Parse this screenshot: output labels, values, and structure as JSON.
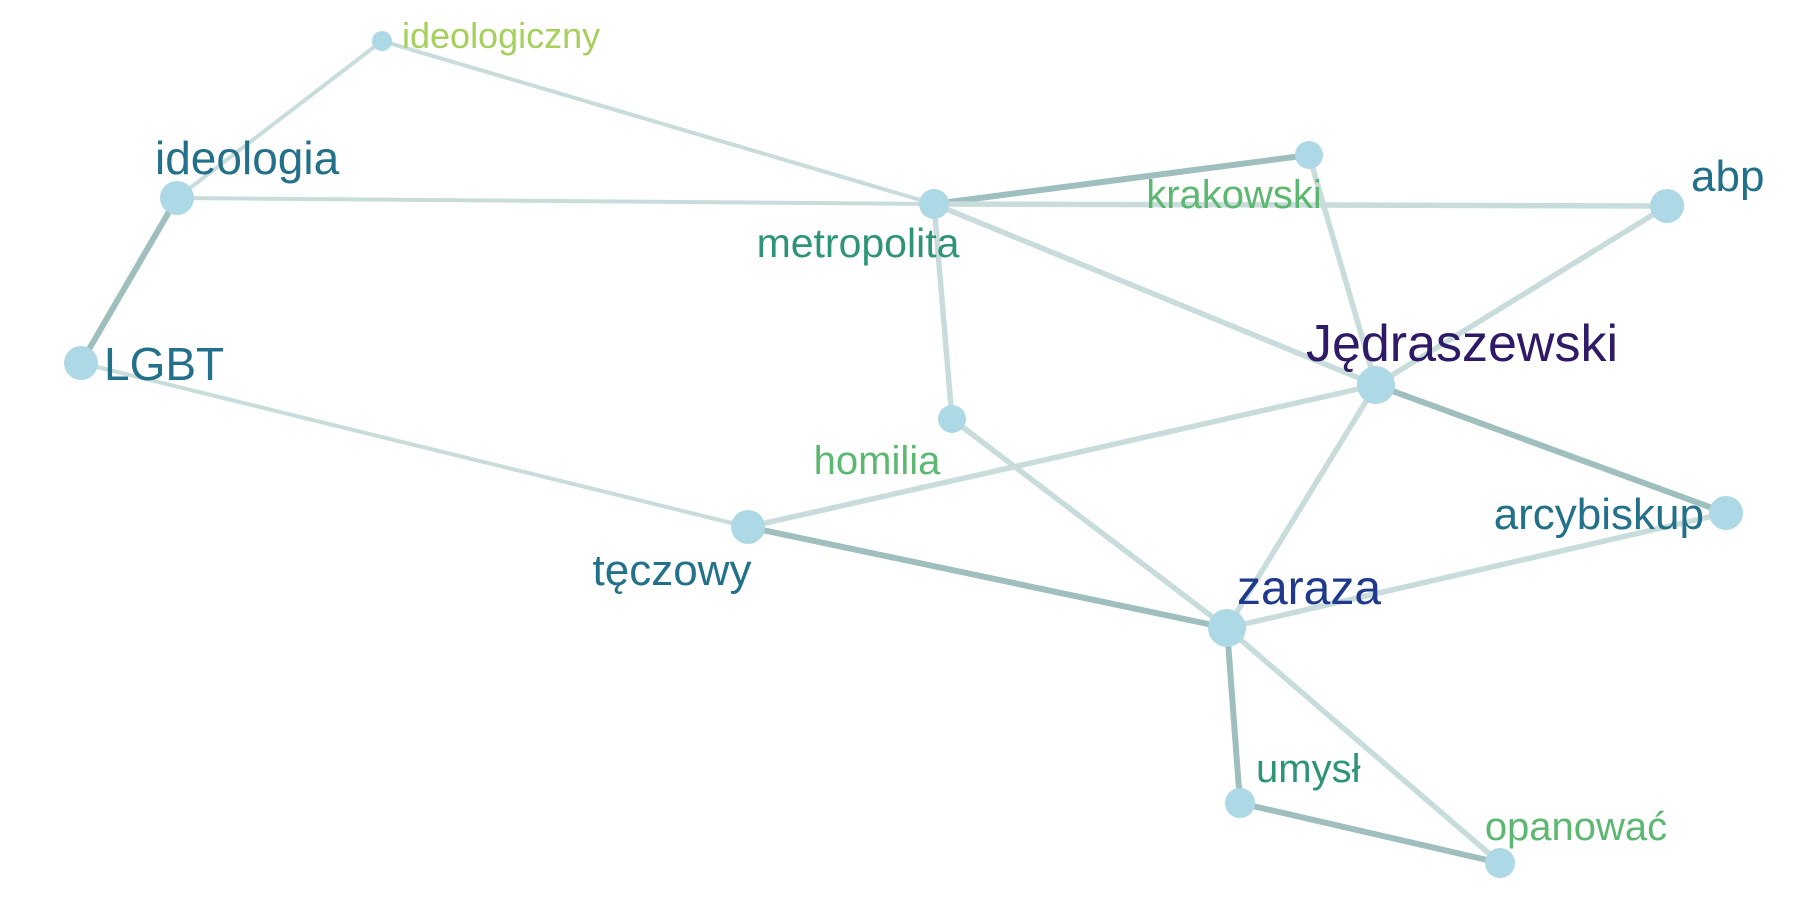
{
  "colors": {
    "node": "#add8e6",
    "edge": "#c9dcdc",
    "edge_strong": "#9fbebe",
    "background": "#ffffff"
  },
  "nodes": [
    {
      "id": "ideologiczny",
      "label": "ideologiczny",
      "color": "#a6d05c"
    },
    {
      "id": "ideologia",
      "label": "ideologia",
      "color": "#22708a"
    },
    {
      "id": "metropolita",
      "label": "metropolita",
      "color": "#2e9478"
    },
    {
      "id": "krakowski",
      "label": "krakowski",
      "color": "#5cb870"
    },
    {
      "id": "abp",
      "label": "abp",
      "color": "#22708a"
    },
    {
      "id": "LGBT",
      "label": "LGBT",
      "color": "#22708a"
    },
    {
      "id": "Jedraszewski",
      "label": "Jędraszewski",
      "color": "#2e1a66"
    },
    {
      "id": "homilia",
      "label": "homilia",
      "color": "#5cb870"
    },
    {
      "id": "arcybiskup",
      "label": "arcybiskup",
      "color": "#22708a"
    },
    {
      "id": "teczowy",
      "label": "tęczowy",
      "color": "#22708a"
    },
    {
      "id": "zaraza",
      "label": "zaraza",
      "color": "#1f3a8c"
    },
    {
      "id": "umysl",
      "label": "umysł",
      "color": "#2e9478"
    },
    {
      "id": "opanowac",
      "label": "opanować",
      "color": "#5cb870"
    }
  ],
  "edges": [
    {
      "source": "ideologiczny",
      "target": "ideologia",
      "weight": 1
    },
    {
      "source": "ideologiczny",
      "target": "metropolita",
      "weight": 1
    },
    {
      "source": "ideologia",
      "target": "metropolita",
      "weight": 1
    },
    {
      "source": "ideologia",
      "target": "LGBT",
      "weight": 3
    },
    {
      "source": "metropolita",
      "target": "krakowski",
      "weight": 3
    },
    {
      "source": "metropolita",
      "target": "abp",
      "weight": 2
    },
    {
      "source": "metropolita",
      "target": "Jedraszewski",
      "weight": 2
    },
    {
      "source": "metropolita",
      "target": "homilia",
      "weight": 2
    },
    {
      "source": "krakowski",
      "target": "Jedraszewski",
      "weight": 2
    },
    {
      "source": "abp",
      "target": "Jedraszewski",
      "weight": 2
    },
    {
      "source": "LGBT",
      "target": "teczowy",
      "weight": 1
    },
    {
      "source": "Jedraszewski",
      "target": "arcybiskup",
      "weight": 3
    },
    {
      "source": "Jedraszewski",
      "target": "teczowy",
      "weight": 2
    },
    {
      "source": "Jedraszewski",
      "target": "zaraza",
      "weight": 2
    },
    {
      "source": "homilia",
      "target": "zaraza",
      "weight": 2
    },
    {
      "source": "teczowy",
      "target": "zaraza",
      "weight": 3
    },
    {
      "source": "arcybiskup",
      "target": "zaraza",
      "weight": 2
    },
    {
      "source": "zaraza",
      "target": "umysl",
      "weight": 3
    },
    {
      "source": "zaraza",
      "target": "opanowac",
      "weight": 2
    },
    {
      "source": "umysl",
      "target": "opanowac",
      "weight": 3
    }
  ]
}
